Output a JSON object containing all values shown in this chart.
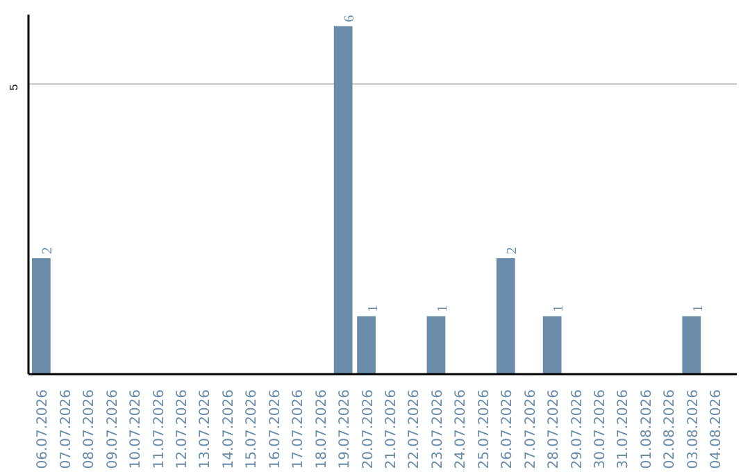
{
  "chart_data": {
    "type": "bar",
    "categories": [
      "06.07.2026",
      "07.07.2026",
      "08.07.2026",
      "09.07.2026",
      "10.07.2026",
      "11.07.2026",
      "12.07.2026",
      "13.07.2026",
      "14.07.2026",
      "15.07.2026",
      "16.07.2026",
      "17.07.2026",
      "18.07.2026",
      "19.07.2026",
      "20.07.2026",
      "21.07.2026",
      "22.07.2026",
      "23.07.2026",
      "24.07.2026",
      "25.07.2026",
      "26.07.2026",
      "27.07.2026",
      "28.07.2026",
      "29.07.2026",
      "30.07.2026",
      "31.07.2026",
      "01.08.2026",
      "02.08.2026",
      "03.08.2026",
      "04.08.2026"
    ],
    "values": [
      2,
      0,
      0,
      0,
      0,
      0,
      0,
      0,
      0,
      0,
      0,
      0,
      0,
      6,
      1,
      0,
      0,
      1,
      0,
      0,
      2,
      0,
      1,
      0,
      0,
      0,
      0,
      0,
      1,
      0
    ],
    "value_labels": [
      "2",
      null,
      null,
      null,
      null,
      null,
      null,
      null,
      null,
      null,
      null,
      null,
      null,
      "6",
      "1",
      null,
      null,
      "1",
      null,
      null,
      "2",
      null,
      "1",
      null,
      null,
      null,
      null,
      null,
      "1",
      null
    ],
    "color": "#6a8caa",
    "ylim": [
      0,
      6.2
    ],
    "yticks": [
      5
    ],
    "grid": "y"
  }
}
